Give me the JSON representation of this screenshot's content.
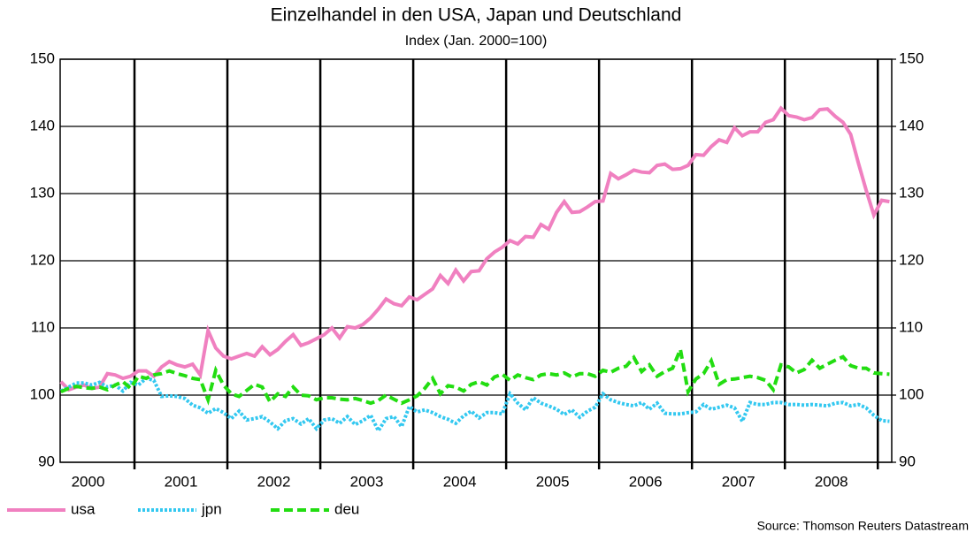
{
  "chart_data": {
    "type": "line",
    "title": "Einzelhandel in den USA, Japan und Deutschland",
    "subtitle": "Index (Jan. 2000=100)",
    "source": "Source: Thomson Reuters Datastream",
    "x": [
      2000.208,
      2000.292,
      2000.375,
      2000.458,
      2000.542,
      2000.625,
      2000.708,
      2000.792,
      2000.875,
      2000.958,
      2001.042,
      2001.125,
      2001.208,
      2001.292,
      2001.375,
      2001.458,
      2001.542,
      2001.625,
      2001.708,
      2001.792,
      2001.875,
      2001.958,
      2002.042,
      2002.125,
      2002.208,
      2002.292,
      2002.375,
      2002.458,
      2002.542,
      2002.625,
      2002.708,
      2002.792,
      2002.875,
      2002.958,
      2003.042,
      2003.125,
      2003.208,
      2003.292,
      2003.375,
      2003.458,
      2003.542,
      2003.625,
      2003.708,
      2003.792,
      2003.875,
      2003.958,
      2004.042,
      2004.125,
      2004.208,
      2004.292,
      2004.375,
      2004.458,
      2004.542,
      2004.625,
      2004.708,
      2004.792,
      2004.875,
      2004.958,
      2005.042,
      2005.125,
      2005.208,
      2005.292,
      2005.375,
      2005.458,
      2005.542,
      2005.625,
      2005.708,
      2005.792,
      2005.875,
      2005.958,
      2006.042,
      2006.125,
      2006.208,
      2006.292,
      2006.375,
      2006.458,
      2006.542,
      2006.625,
      2006.708,
      2006.792,
      2006.875,
      2006.958,
      2007.042,
      2007.125,
      2007.208,
      2007.292,
      2007.375,
      2007.458,
      2007.542,
      2007.625,
      2007.708,
      2007.792,
      2007.875,
      2007.958,
      2008.042,
      2008.125,
      2008.208,
      2008.292,
      2008.375,
      2008.458,
      2008.542,
      2008.625,
      2008.708,
      2008.792,
      2008.875,
      2008.958,
      2009.042,
      2009.125
    ],
    "series": [
      {
        "name": "usa",
        "color": "#f080c0",
        "style": "solid",
        "values": [
          102,
          100.8,
          101.2,
          101.5,
          101,
          101.2,
          103.2,
          103,
          102.5,
          102.8,
          103.6,
          103.6,
          102.8,
          104.2,
          105,
          104.5,
          104.2,
          104.6,
          103,
          109.6,
          107,
          105.8,
          105.4,
          105.8,
          106.2,
          105.8,
          107.2,
          106,
          106.8,
          108,
          109,
          107.4,
          107.8,
          108.4,
          109,
          110,
          108.5,
          110.2,
          110,
          110.5,
          111.5,
          112.8,
          114.3,
          113.6,
          113.3,
          114.6,
          114.2,
          115,
          115.8,
          117.8,
          116.6,
          118.6,
          117,
          118.4,
          118.5,
          120.3,
          121.3,
          122,
          123,
          122.5,
          123.6,
          123.5,
          125.4,
          124.7,
          127.2,
          128.8,
          127.2,
          127.3,
          128,
          128.8,
          128.9,
          133,
          132.2,
          132.8,
          133.5,
          133.2,
          133.1,
          134.2,
          134.4,
          133.6,
          133.7,
          134.2,
          135.8,
          135.7,
          137,
          138,
          137.6,
          139.8,
          138.6,
          139.2,
          139.2,
          140.6,
          141,
          142.7,
          141.6,
          141.4,
          141,
          141.3,
          142.5,
          142.6,
          141.5,
          140.6,
          138.8,
          134.5,
          130.5,
          126.8,
          129,
          128.8
        ]
      },
      {
        "name": "jpn",
        "color": "#33c8f0",
        "style": "dotted",
        "values": [
          100.6,
          101.2,
          101.8,
          101.8,
          101.5,
          101.9,
          101.2,
          101.5,
          100.6,
          101.9,
          101.5,
          102.5,
          102.2,
          99.8,
          99.9,
          99.8,
          99.5,
          98.5,
          98.1,
          97.3,
          98,
          97.4,
          96.5,
          97.6,
          96.3,
          96.5,
          96.8,
          96,
          95,
          96.2,
          96.5,
          95.7,
          96.5,
          95,
          96.3,
          96.5,
          95.8,
          96.8,
          95.6,
          96.2,
          97,
          94.7,
          96.5,
          96.8,
          95.3,
          98.3,
          97.5,
          97.8,
          97.4,
          96.8,
          96.4,
          95.8,
          96.9,
          97.6,
          96.6,
          97.4,
          97.4,
          97.2,
          100.2,
          98.8,
          97.8,
          99.6,
          98.8,
          98.4,
          97.9,
          97.1,
          97.8,
          96.7,
          97.6,
          98.2,
          100.2,
          99.3,
          98.9,
          98.6,
          98.4,
          98.9,
          97.9,
          98.8,
          97.3,
          97.2,
          97.2,
          97.4,
          97.5,
          98.6,
          97.9,
          98.2,
          98.5,
          98.1,
          96.1,
          98.9,
          98.6,
          98.6,
          98.9,
          98.9,
          98.6,
          98.6,
          98.5,
          98.6,
          98.5,
          98.4,
          98.8,
          98.9,
          98.4,
          98.6,
          98.1,
          97,
          96.2,
          96.1
        ]
      },
      {
        "name": "deu",
        "color": "#22dd11",
        "style": "dashed",
        "values": [
          100.5,
          101,
          101.3,
          101.1,
          101,
          101.2,
          100.8,
          101.5,
          102,
          101,
          102.8,
          102.5,
          103,
          103.2,
          103.6,
          103.2,
          102.9,
          102.5,
          102.3,
          99.3,
          103.7,
          101.5,
          100.2,
          99.8,
          100.7,
          101.6,
          101.2,
          99,
          100.2,
          99.8,
          101.2,
          100,
          99.9,
          99.3,
          99.6,
          99.6,
          99.4,
          99.3,
          99.5,
          99.2,
          98.8,
          99.2,
          100,
          99.4,
          98.8,
          99.3,
          99.9,
          101,
          102.5,
          100.2,
          101.4,
          101.2,
          100.6,
          101.6,
          102,
          101.5,
          102.7,
          103.1,
          102.2,
          103,
          102.6,
          102.3,
          103,
          103.2,
          103,
          103.3,
          102.7,
          103.2,
          103.2,
          102.8,
          103.7,
          103.4,
          104,
          104.3,
          105.6,
          103.5,
          104.5,
          102.8,
          103.5,
          104,
          106.8,
          100.5,
          102.4,
          103.2,
          105.1,
          101.6,
          102.3,
          102.4,
          102.6,
          102.8,
          102.6,
          102.2,
          100.8,
          104.5,
          104.2,
          103.3,
          103.8,
          105.2,
          104,
          104.6,
          105.2,
          105.7,
          104.4,
          104,
          104,
          103.3,
          103.2,
          103.1
        ]
      }
    ],
    "xlim": [
      2000.2,
      2009.15
    ],
    "xticks": [
      {
        "value": 2000.5,
        "label": "2000"
      },
      {
        "value": 2001.5,
        "label": "2001"
      },
      {
        "value": 2002.5,
        "label": "2002"
      },
      {
        "value": 2003.5,
        "label": "2003"
      },
      {
        "value": 2004.5,
        "label": "2004"
      },
      {
        "value": 2005.5,
        "label": "2005"
      },
      {
        "value": 2006.5,
        "label": "2006"
      },
      {
        "value": 2007.5,
        "label": "2007"
      },
      {
        "value": 2008.5,
        "label": "2008"
      }
    ],
    "xgrid": [
      2001,
      2002,
      2003,
      2004,
      2005,
      2006,
      2007,
      2008,
      2009
    ],
    "ylim": [
      90,
      150
    ],
    "yticks": [
      90,
      100,
      110,
      120,
      130,
      140,
      150
    ],
    "y2lim": [
      90,
      150
    ],
    "y2ticks": [
      90,
      100,
      110,
      120,
      130,
      140,
      150
    ],
    "grid": true,
    "legend": "bottom"
  }
}
